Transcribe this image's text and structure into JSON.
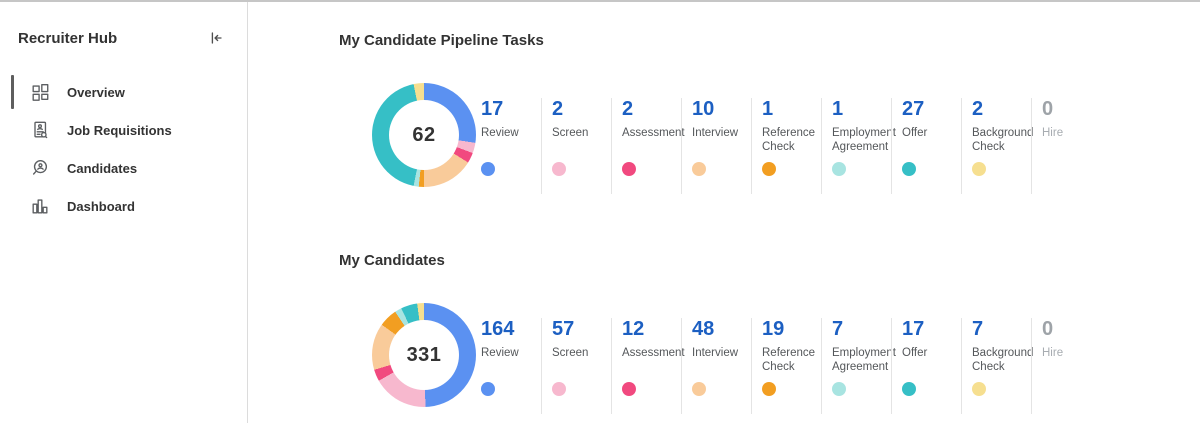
{
  "sidebar": {
    "title": "Recruiter Hub",
    "collapse_button": {
      "icon": "collapse-left-icon"
    },
    "items": [
      {
        "label": "Overview",
        "icon": "overview-grid-icon",
        "active": true
      },
      {
        "label": "Job Requisitions",
        "icon": "job-requisitions-document-icon",
        "active": false
      },
      {
        "label": "Candidates",
        "icon": "candidates-search-icon",
        "active": false
      },
      {
        "label": "Dashboard",
        "icon": "dashboard-bar-chart-icon",
        "active": false
      }
    ]
  },
  "sections": [
    {
      "title": "My Candidate Pipeline Tasks",
      "total": "62",
      "stages": [
        {
          "label": "Review",
          "count": "17",
          "color": "#5B91F1"
        },
        {
          "label": "Screen",
          "count": "2",
          "color": "#F7B8CE"
        },
        {
          "label": "Assessment",
          "count": "2",
          "color": "#F1497F"
        },
        {
          "label": "Interview",
          "count": "10",
          "color": "#F9CB9A"
        },
        {
          "label": "Reference Check",
          "count": "1",
          "color": "#F29E21"
        },
        {
          "label": "Employment Agreement",
          "count": "1",
          "color": "#A8E4E1"
        },
        {
          "label": "Offer",
          "count": "27",
          "color": "#36BFC6"
        },
        {
          "label": "Background Check",
          "count": "2",
          "color": "#F6DF90"
        },
        {
          "label": "Hire",
          "count": "0",
          "color": null,
          "muted": true
        }
      ]
    },
    {
      "title": "My Candidates",
      "total": "331",
      "stages": [
        {
          "label": "Review",
          "count": "164",
          "color": "#5B91F1"
        },
        {
          "label": "Screen",
          "count": "57",
          "color": "#F7B8CE"
        },
        {
          "label": "Assessment",
          "count": "12",
          "color": "#F1497F"
        },
        {
          "label": "Interview",
          "count": "48",
          "color": "#F9CB9A"
        },
        {
          "label": "Reference Check",
          "count": "19",
          "color": "#F29E21"
        },
        {
          "label": "Employment Agreement",
          "count": "7",
          "color": "#A8E4E1"
        },
        {
          "label": "Offer",
          "count": "17",
          "color": "#36BFC6"
        },
        {
          "label": "Background Check",
          "count": "7",
          "color": "#F6DF90"
        },
        {
          "label": "Hire",
          "count": "0",
          "color": null,
          "muted": true
        }
      ]
    }
  ],
  "chart_data": [
    {
      "type": "pie",
      "variant": "donut",
      "title": "My Candidate Pipeline Tasks",
      "center_label": 62,
      "categories": [
        "Review",
        "Screen",
        "Assessment",
        "Interview",
        "Reference Check",
        "Employment Agreement",
        "Offer",
        "Background Check",
        "Hire"
      ],
      "values": [
        17,
        2,
        2,
        10,
        1,
        1,
        27,
        2,
        0
      ],
      "colors": [
        "#5B91F1",
        "#F7B8CE",
        "#F1497F",
        "#F9CB9A",
        "#F29E21",
        "#A8E4E1",
        "#36BFC6",
        "#F6DF90",
        null
      ],
      "start_angle_deg": 0,
      "direction": "clockwise",
      "legend_position": "right-as-stat-columns"
    },
    {
      "type": "pie",
      "variant": "donut",
      "title": "My Candidates",
      "center_label": 331,
      "categories": [
        "Review",
        "Screen",
        "Assessment",
        "Interview",
        "Reference Check",
        "Employment Agreement",
        "Offer",
        "Background Check",
        "Hire"
      ],
      "values": [
        164,
        57,
        12,
        48,
        19,
        7,
        17,
        7,
        0
      ],
      "colors": [
        "#5B91F1",
        "#F7B8CE",
        "#F1497F",
        "#F9CB9A",
        "#F29E21",
        "#A8E4E1",
        "#36BFC6",
        "#F6DF90",
        null
      ],
      "start_angle_deg": 0,
      "direction": "clockwise",
      "legend_position": "right-as-stat-columns"
    }
  ],
  "colors": {
    "stat_number": "#1C5FC2",
    "muted_number": "#9EA3A8",
    "heading_text": "#333333",
    "label_text": "#54575A",
    "divider": "#E4E4E4",
    "sidebar_border": "#DCDCDC",
    "active_indicator": "#5E5E5E"
  }
}
